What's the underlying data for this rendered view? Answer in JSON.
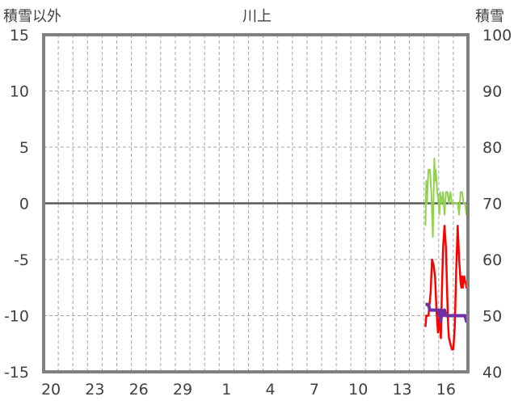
{
  "chart_data": {
    "type": "line",
    "title": "川上",
    "left_axis_label": "積雪以外",
    "right_axis_label": "積雪",
    "left_ylim": [
      -15,
      15
    ],
    "right_ylim": [
      40,
      100
    ],
    "left_ticks": [
      "15",
      "10",
      "5",
      "0",
      "-5",
      "-10",
      "-15"
    ],
    "right_ticks": [
      "100",
      "90",
      "80",
      "70",
      "60",
      "50",
      "40"
    ],
    "x_ticks": [
      "20",
      "23",
      "26",
      "29",
      "1",
      "4",
      "7",
      "10",
      "13",
      "16"
    ],
    "x_range_days": 29,
    "grid": true,
    "colors": {
      "green": "#92d050",
      "red": "#ff0000",
      "purple": "#7030a0",
      "frame": "#808080",
      "zero_line": "#595959",
      "grid": "#a6a6a6"
    },
    "series": [
      {
        "color": "#92d050",
        "axis": "left",
        "x": [
          26.1,
          26.15,
          26.2,
          26.3,
          26.4,
          26.5,
          26.6,
          26.7,
          26.75,
          26.8,
          26.9,
          27.0,
          27.05,
          27.1,
          27.2,
          27.3,
          27.4,
          27.5,
          27.6,
          27.7,
          27.8,
          27.9,
          28.0,
          28.1,
          28.2,
          28.3,
          28.4,
          28.5,
          28.6,
          28.7,
          28.8,
          28.9,
          29.0
        ],
        "y": [
          -2,
          2,
          0,
          3,
          3,
          1,
          -3,
          4,
          2,
          3,
          1,
          0,
          -1,
          1,
          0,
          1,
          -1,
          1,
          1,
          0,
          1,
          0,
          0,
          0,
          0,
          0,
          -1,
          1,
          1,
          0,
          0,
          -1,
          0
        ]
      },
      {
        "color": "#ff0000",
        "axis": "left",
        "x": [
          26.1,
          26.15,
          26.3,
          26.45,
          26.55,
          26.65,
          26.75,
          26.85,
          26.95,
          27.05,
          27.15,
          27.2,
          27.3,
          27.4,
          27.5,
          27.6,
          27.65,
          27.7,
          27.8,
          27.9,
          28.0,
          28.1,
          28.2,
          28.3,
          28.4,
          28.5,
          28.55,
          28.6,
          28.65,
          28.7,
          28.75,
          28.8,
          28.85,
          28.9,
          28.95,
          29.0
        ],
        "y": [
          -11,
          -10,
          -10,
          -8,
          -5,
          -5.5,
          -6.5,
          -9.5,
          -11.5,
          -10,
          -12,
          -9,
          -4,
          -2,
          -4,
          -9,
          -11,
          -12,
          -12.5,
          -13,
          -13,
          -11,
          -6,
          -2,
          -5,
          -7,
          -7.5,
          -6.5,
          -7.5,
          -7,
          -6.5,
          -7,
          -7,
          -7.5,
          -7,
          -7
        ]
      },
      {
        "color": "#7030a0",
        "axis": "right",
        "x": [
          26.1,
          26.3,
          26.4,
          26.5,
          26.6,
          26.7,
          26.8,
          26.9,
          27.0,
          27.05,
          27.1,
          27.15,
          27.2,
          27.3,
          27.4,
          27.5,
          27.6,
          27.7,
          27.8,
          27.9,
          28.0,
          28.2,
          28.4,
          28.6,
          28.8,
          28.9,
          29.0
        ],
        "y": [
          52,
          52,
          51,
          51,
          51,
          51,
          51,
          51,
          51,
          50,
          51,
          49,
          51,
          50,
          51,
          50,
          50,
          50,
          50,
          50,
          50,
          50,
          50,
          50,
          50,
          49,
          50
        ]
      }
    ]
  }
}
